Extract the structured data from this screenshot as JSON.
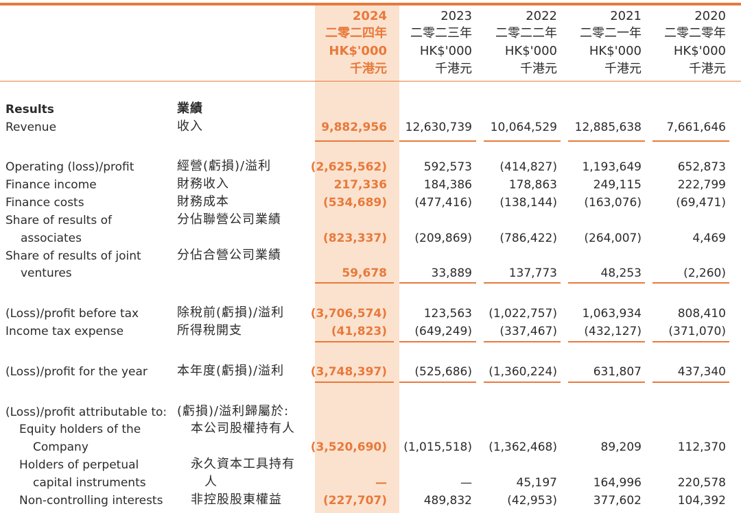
{
  "columns": [
    {
      "year": "2024",
      "year_zh": "二零二四年",
      "unit": "HK$'000",
      "unit_zh": "千港元"
    },
    {
      "year": "2023",
      "year_zh": "二零二三年",
      "unit": "HK$'000",
      "unit_zh": "千港元"
    },
    {
      "year": "2022",
      "year_zh": "二零二二年",
      "unit": "HK$'000",
      "unit_zh": "千港元"
    },
    {
      "year": "2021",
      "year_zh": "二零二一年",
      "unit": "HK$'000",
      "unit_zh": "千港元"
    },
    {
      "year": "2020",
      "year_zh": "二零二零年",
      "unit": "HK$'000",
      "unit_zh": "千港元"
    }
  ],
  "section": {
    "en": "Results",
    "zh": "業績"
  },
  "rows": [
    {
      "en": [
        "Revenue"
      ],
      "zh": [
        "收入"
      ],
      "values": [
        "9,882,956",
        "12,630,739",
        "10,064,529",
        "12,885,638",
        "7,661,646"
      ]
    },
    {
      "en": [
        "Operating (loss)/profit"
      ],
      "zh": [
        "經營(虧損)/溢利"
      ],
      "values": [
        "(2,625,562)",
        "592,573",
        "(414,827)",
        "1,193,649",
        "652,873"
      ]
    },
    {
      "en": [
        "Finance income"
      ],
      "zh": [
        "財務收入"
      ],
      "values": [
        "217,336",
        "184,386",
        "178,863",
        "249,115",
        "222,799"
      ]
    },
    {
      "en": [
        "Finance costs"
      ],
      "zh": [
        "財務成本"
      ],
      "values": [
        "(534,689)",
        "(477,416)",
        "(138,144)",
        "(163,076)",
        "(69,471)"
      ]
    },
    {
      "en": [
        "Share of results of",
        "associates"
      ],
      "zh": [
        "分佔聯營公司業績"
      ],
      "values": [
        "(823,337)",
        "(209,869)",
        "(786,422)",
        "(264,007)",
        "4,469"
      ]
    },
    {
      "en": [
        "Share of results of joint",
        "ventures"
      ],
      "zh": [
        "分佔合營公司業績"
      ],
      "values": [
        "59,678",
        "33,889",
        "137,773",
        "48,253",
        "(2,260)"
      ]
    },
    {
      "en": [
        "(Loss)/profit before tax"
      ],
      "zh": [
        "除稅前(虧損)/溢利"
      ],
      "values": [
        "(3,706,574)",
        "123,563",
        "(1,022,757)",
        "1,063,934",
        "808,410"
      ]
    },
    {
      "en": [
        "Income tax expense"
      ],
      "zh": [
        "所得稅開支"
      ],
      "values": [
        "(41,823)",
        "(649,249)",
        "(337,467)",
        "(432,127)",
        "(371,070)"
      ]
    },
    {
      "en": [
        "(Loss)/profit for the year"
      ],
      "zh": [
        "本年度(虧損)/溢利"
      ],
      "values": [
        "(3,748,397)",
        "(525,686)",
        "(1,360,224)",
        "631,807",
        "437,340"
      ]
    },
    {
      "en": [
        "(Loss)/profit attributable to:"
      ],
      "zh": [
        "(虧損)/溢利歸屬於:"
      ]
    },
    {
      "en": [
        "Equity holders of the",
        "Company"
      ],
      "zh": [
        "本公司股權持有人"
      ],
      "values": [
        "(3,520,690)",
        "(1,015,518)",
        "(1,362,468)",
        "89,209",
        "112,370"
      ]
    },
    {
      "en": [
        "Holders of perpetual",
        "capital instruments"
      ],
      "zh": [
        "永久資本工具持有",
        "人"
      ],
      "values": [
        "—",
        "—",
        "45,197",
        "164,996",
        "220,578"
      ]
    },
    {
      "en": [
        "Non-controlling interests"
      ],
      "zh": [
        "非控股股東權益"
      ],
      "values": [
        "(227,707)",
        "489,832",
        "(42,953)",
        "377,602",
        "104,392"
      ]
    }
  ]
}
